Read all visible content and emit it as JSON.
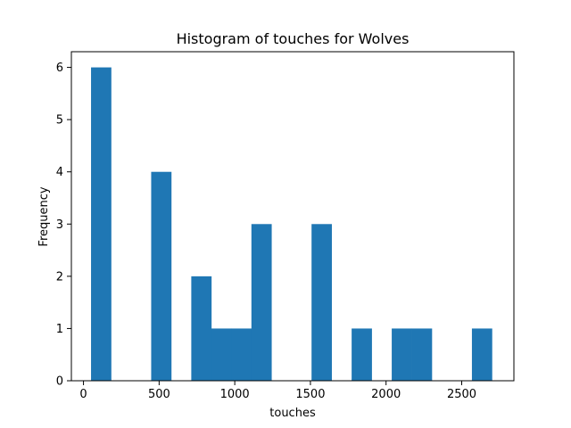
{
  "chart_data": {
    "type": "bar",
    "title": "Histogram of touches for Wolves",
    "xlabel": "touches",
    "ylabel": "Frequency",
    "xlim": [
      -80,
      2845
    ],
    "ylim": [
      0,
      6.3
    ],
    "x_ticks": [
      0,
      500,
      1000,
      1500,
      2000,
      2500
    ],
    "x_tick_labels": [
      "0",
      "500",
      "1000",
      "1500",
      "2000",
      "2500"
    ],
    "y_ticks": [
      0,
      1,
      2,
      3,
      4,
      5,
      6
    ],
    "y_tick_labels": [
      "0",
      "1",
      "2",
      "3",
      "4",
      "5",
      "6"
    ],
    "bar_color": "#1f77b4",
    "bin_edges": [
      50,
      182.5,
      315,
      447.5,
      580,
      712.5,
      845,
      977.5,
      1110,
      1242.5,
      1375,
      1507.5,
      1640,
      1772.5,
      1905,
      2037.5,
      2170,
      2302.5,
      2435,
      2567.5,
      2700
    ],
    "values": [
      6,
      0,
      0,
      4,
      0,
      2,
      1,
      1,
      3,
      0,
      0,
      3,
      0,
      1,
      0,
      1,
      1,
      0,
      0,
      1
    ],
    "grid": false,
    "legend": "none"
  }
}
